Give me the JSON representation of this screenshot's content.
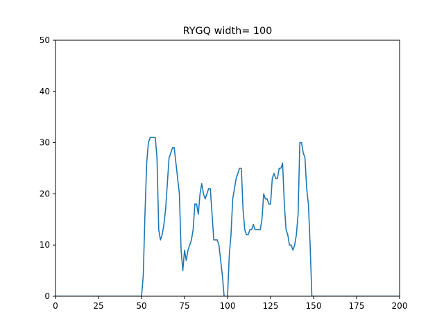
{
  "chart_data": {
    "type": "line",
    "title": "RYGQ width= 100",
    "xlabel": "",
    "ylabel": "",
    "xlim": [
      0,
      200
    ],
    "ylim": [
      0,
      50
    ],
    "xticks": [
      0,
      25,
      50,
      75,
      100,
      125,
      150,
      175,
      200
    ],
    "yticks": [
      0,
      10,
      20,
      30,
      40,
      50
    ],
    "grid": false,
    "series": [
      {
        "color": "#1f77b4",
        "x": [
          0,
          49,
          50,
          51,
          52,
          53,
          54,
          55,
          56,
          57,
          58,
          59,
          60,
          61,
          62,
          63,
          64,
          65,
          66,
          67,
          68,
          69,
          70,
          71,
          72,
          73,
          74,
          75,
          76,
          77,
          78,
          79,
          80,
          81,
          82,
          83,
          84,
          85,
          86,
          87,
          88,
          89,
          90,
          91,
          92,
          93,
          94,
          95,
          96,
          97,
          98,
          99,
          100,
          101,
          102,
          103,
          104,
          105,
          106,
          107,
          108,
          109,
          110,
          111,
          112,
          113,
          114,
          115,
          116,
          117,
          118,
          119,
          120,
          121,
          122,
          123,
          124,
          125,
          126,
          127,
          128,
          129,
          130,
          131,
          132,
          133,
          134,
          135,
          136,
          137,
          138,
          139,
          140,
          141,
          142,
          143,
          144,
          145,
          146,
          147,
          148,
          149,
          150,
          151,
          200
        ],
        "y": [
          0,
          0,
          0,
          4,
          16,
          26,
          30,
          31,
          31,
          31,
          31,
          27,
          13,
          11,
          12,
          14,
          17,
          22,
          27,
          28,
          29,
          29,
          26,
          23,
          20,
          9,
          5,
          9,
          7,
          9,
          10,
          11,
          13,
          18,
          18,
          16,
          20,
          22,
          20,
          19,
          20,
          21,
          21,
          16,
          11,
          11,
          11,
          10,
          7,
          4,
          0,
          0,
          0,
          8,
          12,
          19,
          21,
          23,
          24,
          25,
          25,
          17,
          13,
          12,
          12,
          13,
          13,
          14,
          13,
          13,
          13,
          13,
          15,
          20,
          19,
          19,
          18,
          18,
          23,
          24,
          23,
          23,
          25,
          25,
          26,
          18,
          13,
          12,
          10,
          10,
          9,
          10,
          12,
          16,
          30,
          30,
          28,
          27,
          21,
          18,
          10,
          0,
          0,
          0,
          0
        ]
      }
    ]
  }
}
